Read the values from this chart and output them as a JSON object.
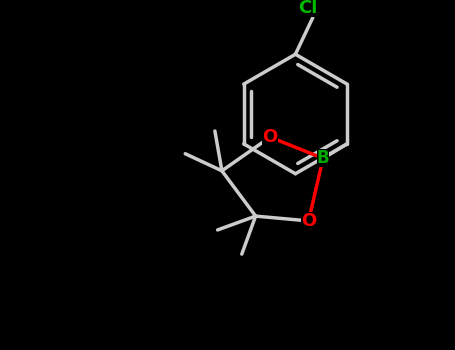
{
  "background_color": "#000000",
  "bond_color": "#cccccc",
  "cl_color": "#00bb00",
  "b_color": "#00aa00",
  "o_color": "#ff0000",
  "figsize": [
    4.55,
    3.5
  ],
  "dpi": 100,
  "cl_label": "Cl",
  "b_label": "B",
  "o1_label": "O",
  "o2_label": "O",
  "lw": 2.5
}
